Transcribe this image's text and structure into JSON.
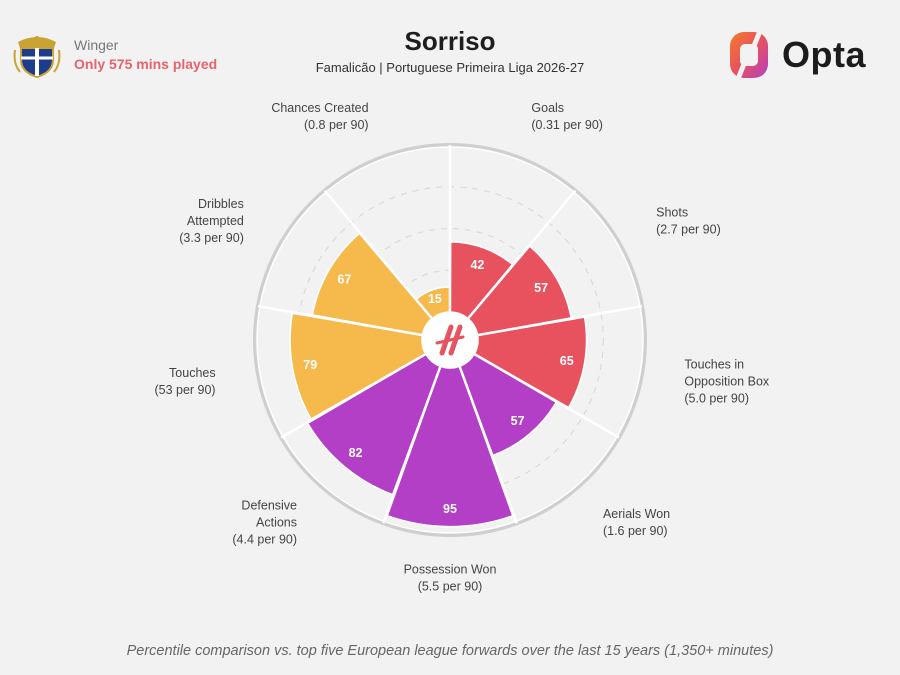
{
  "player": {
    "position": "Winger",
    "minutes_note": "Only 575 mins played"
  },
  "header": {
    "title": "Sorriso",
    "subtitle": "Famalicão | Portuguese Primeira Liga 2026-27"
  },
  "logo": {
    "text": "Opta"
  },
  "footer": {
    "note": "Percentile comparison vs. top five European league forwards over the last 15 years (1,350+ minutes)"
  },
  "colors": {
    "attack": "#e8525f",
    "defence": "#b23fc6",
    "possession": "#f5b94c",
    "grid": "#ffffff",
    "background": "#f2f2f2"
  },
  "chart_data": {
    "type": "polar-bar",
    "range": [
      0,
      100
    ],
    "metrics": [
      {
        "name": [
          "Goals"
        ],
        "per90": "(0.31 per 90)",
        "value": 42,
        "group": "attack"
      },
      {
        "name": [
          "Shots"
        ],
        "per90": "(2.7 per 90)",
        "value": 57,
        "group": "attack"
      },
      {
        "name": [
          "Touches in",
          "Opposition Box"
        ],
        "per90": "(5.0 per 90)",
        "value": 65,
        "group": "attack"
      },
      {
        "name": [
          "Aerials Won"
        ],
        "per90": "(1.6 per 90)",
        "value": 57,
        "group": "defence"
      },
      {
        "name": [
          "Possession Won"
        ],
        "per90": "(5.5 per 90)",
        "value": 95,
        "group": "defence"
      },
      {
        "name": [
          "Defensive",
          "Actions"
        ],
        "per90": "(4.4 per 90)",
        "value": 82,
        "group": "defence"
      },
      {
        "name": [
          "Touches"
        ],
        "per90": "(53 per 90)",
        "value": 79,
        "group": "possession"
      },
      {
        "name": [
          "Dribbles",
          "Attempted"
        ],
        "per90": "(3.3 per 90)",
        "value": 67,
        "group": "possession"
      },
      {
        "name": [
          "Chances Created"
        ],
        "per90": "(0.8 per 90)",
        "value": 15,
        "group": "possession"
      }
    ]
  }
}
